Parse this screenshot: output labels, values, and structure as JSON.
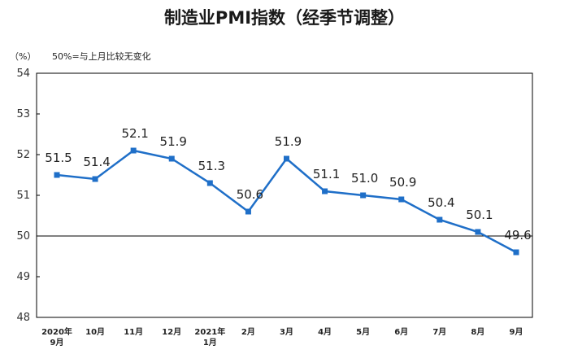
{
  "chart_data": {
    "type": "line",
    "title": "制造业PMI指数（经季节调整）",
    "unit_label": "（%）",
    "annotation": "50%=与上月比较无变化",
    "reference_line": 50,
    "ylim": [
      48,
      54
    ],
    "yticks": [
      "54",
      "53",
      "52",
      "51",
      "50",
      "49",
      "48"
    ],
    "categories": [
      [
        "2020年",
        "9月"
      ],
      [
        "10月"
      ],
      [
        "11月"
      ],
      [
        "12月"
      ],
      [
        "2021年",
        "1月"
      ],
      [
        "2月"
      ],
      [
        "3月"
      ],
      [
        "4月"
      ],
      [
        "5月"
      ],
      [
        "6月"
      ],
      [
        "7月"
      ],
      [
        "8月"
      ],
      [
        "9月"
      ]
    ],
    "values": [
      51.5,
      51.4,
      52.1,
      51.9,
      51.3,
      50.6,
      51.9,
      51.1,
      51.0,
      50.9,
      50.4,
      50.1,
      49.6
    ],
    "value_labels": [
      "51.5",
      "51.4",
      "52.1",
      "51.9",
      "51.3",
      "50.6",
      "51.9",
      "51.1",
      "51.0",
      "50.9",
      "50.4",
      "50.1",
      "49.6"
    ],
    "line_color": "#1f6fc8",
    "grid": false
  }
}
